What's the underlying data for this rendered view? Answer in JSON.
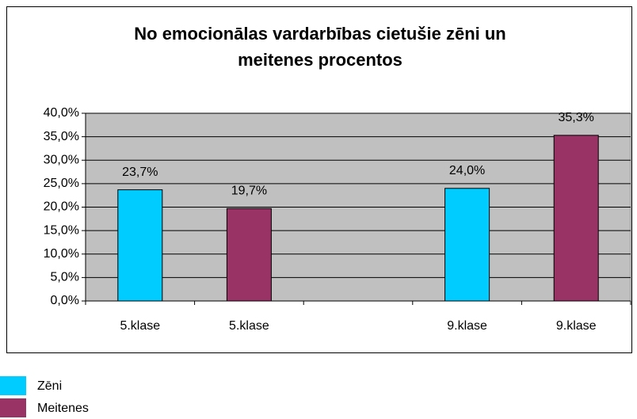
{
  "chart_data": {
    "type": "bar",
    "title": "No emocionālas vardarbības cietušie zēni un meitenes procentos",
    "categories": [
      "5.klase",
      "5.klase",
      null,
      "9.klase",
      "9.klase"
    ],
    "series": [
      {
        "name": "Zēni",
        "color": "#00ccff",
        "values": [
          23.7,
          null,
          null,
          24.0,
          null
        ],
        "value_labels": [
          "23,7%",
          null,
          null,
          "24,0%",
          null
        ]
      },
      {
        "name": "Meitenes",
        "color": "#993366",
        "values": [
          null,
          19.7,
          null,
          null,
          35.3
        ],
        "value_labels": [
          null,
          "19,7%",
          null,
          null,
          "35,3%"
        ]
      }
    ],
    "ylim": [
      0,
      40
    ],
    "yticks": [
      {
        "value": 0,
        "label": "0,0%"
      },
      {
        "value": 5,
        "label": "5,0%"
      },
      {
        "value": 10,
        "label": "10,0%"
      },
      {
        "value": 15,
        "label": "15,0%"
      },
      {
        "value": 20,
        "label": "20,0%"
      },
      {
        "value": 25,
        "label": "25,0%"
      },
      {
        "value": 30,
        "label": "30,0%"
      },
      {
        "value": 35,
        "label": "35,0%"
      },
      {
        "value": 40,
        "label": "40,0%"
      }
    ],
    "grid": true,
    "legend": "bottom-left"
  }
}
